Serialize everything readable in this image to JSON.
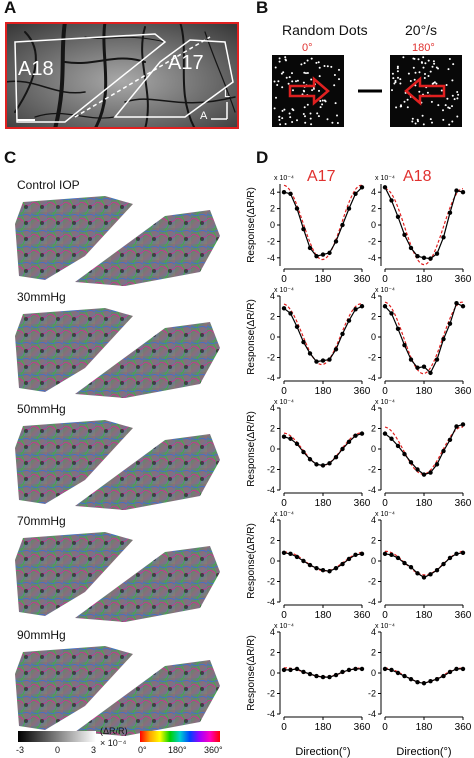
{
  "panels": {
    "A": "A",
    "B": "B",
    "C": "C",
    "D": "D"
  },
  "panel_a": {
    "left_area": "A18",
    "right_area": "A17",
    "axis_l": "L",
    "axis_a": "A"
  },
  "panel_b": {
    "title": "Random Dots",
    "speed": "20°/s",
    "left_angle": "0°",
    "right_angle": "180°"
  },
  "panel_c": {
    "conditions": [
      "Control IOP",
      "30mmHg",
      "50mmHg",
      "70mmHg",
      "90mmHg"
    ],
    "gray_bar": {
      "ticks": [
        "-3",
        "0",
        "3"
      ],
      "unit": "(ΔR/R)",
      "scale": "× 10⁻⁴"
    },
    "color_bar": {
      "ticks": [
        "0°",
        "180°",
        "360°"
      ]
    }
  },
  "panel_d": {
    "columns": [
      "A17",
      "A18"
    ],
    "ylabel": "Response(ΔR/R)",
    "xlabel": "Direction(°)",
    "yscale": "x 10⁻⁴",
    "col_title_color": "#e0312f"
  },
  "chart_data": [
    {
      "type": "line",
      "panel": "D",
      "column": "A17",
      "condition": "Control IOP",
      "x": [
        0,
        30,
        60,
        90,
        120,
        150,
        180,
        210,
        240,
        270,
        300,
        330,
        360
      ],
      "ylim": [
        -5,
        5
      ],
      "yticks": [
        -4,
        -2,
        0,
        2,
        4
      ],
      "xticks": [
        0,
        180,
        360
      ],
      "series": [
        {
          "values": [
            4.0,
            3.8,
            2.0,
            -0.5,
            -2.8,
            -3.8,
            -3.6,
            -3.4,
            -2.0,
            0.0,
            2.0,
            3.8,
            4.6
          ]
        }
      ]
    },
    {
      "type": "line",
      "panel": "D",
      "column": "A18",
      "condition": "Control IOP",
      "x": [
        0,
        30,
        60,
        90,
        120,
        150,
        180,
        210,
        240,
        270,
        300,
        330,
        360
      ],
      "ylim": [
        -5,
        5
      ],
      "yticks": [
        -4,
        -2,
        0,
        2,
        4
      ],
      "xticks": [
        0,
        180,
        360
      ],
      "series": [
        {
          "values": [
            4.6,
            3.0,
            1.0,
            -1.2,
            -2.8,
            -3.8,
            -4.0,
            -4.1,
            -3.5,
            -1.5,
            1.5,
            4.2,
            4.0
          ]
        }
      ]
    },
    {
      "type": "line",
      "panel": "D",
      "column": "A17",
      "condition": "30mmHg",
      "x": [
        0,
        30,
        60,
        90,
        120,
        150,
        180,
        210,
        240,
        270,
        300,
        330,
        360
      ],
      "ylim": [
        -4,
        4
      ],
      "yticks": [
        -4,
        -2,
        0,
        2,
        4
      ],
      "xticks": [
        0,
        180,
        360
      ],
      "series": [
        {
          "values": [
            2.8,
            2.3,
            1.0,
            -0.5,
            -1.6,
            -2.4,
            -2.3,
            -2.2,
            -1.2,
            0.3,
            1.6,
            2.7,
            3.0
          ]
        }
      ]
    },
    {
      "type": "line",
      "panel": "D",
      "column": "A18",
      "condition": "30mmHg",
      "x": [
        0,
        30,
        60,
        90,
        120,
        150,
        180,
        210,
        240,
        270,
        300,
        330,
        360
      ],
      "ylim": [
        -4,
        4
      ],
      "yticks": [
        -4,
        -2,
        0,
        2,
        4
      ],
      "xticks": [
        0,
        180,
        360
      ],
      "series": [
        {
          "values": [
            3.0,
            2.3,
            0.8,
            -0.8,
            -2.2,
            -3.0,
            -2.9,
            -3.5,
            -2.2,
            -0.2,
            1.3,
            3.3,
            3.0
          ]
        }
      ]
    },
    {
      "type": "line",
      "panel": "D",
      "column": "A17",
      "condition": "50mmHg",
      "x": [
        0,
        30,
        60,
        90,
        120,
        150,
        180,
        210,
        240,
        270,
        300,
        330,
        360
      ],
      "ylim": [
        -4,
        4
      ],
      "yticks": [
        -4,
        -2,
        0,
        2,
        4
      ],
      "xticks": [
        0,
        180,
        360
      ],
      "series": [
        {
          "values": [
            1.2,
            1.0,
            0.5,
            -0.3,
            -1.0,
            -1.5,
            -1.6,
            -1.4,
            -0.8,
            0.0,
            0.7,
            1.3,
            1.5
          ]
        }
      ]
    },
    {
      "type": "line",
      "panel": "D",
      "column": "A18",
      "condition": "50mmHg",
      "x": [
        0,
        30,
        60,
        90,
        120,
        150,
        180,
        210,
        240,
        270,
        300,
        330,
        360
      ],
      "ylim": [
        -4,
        4
      ],
      "yticks": [
        -4,
        -2,
        0,
        2,
        4
      ],
      "xticks": [
        0,
        180,
        360
      ],
      "series": [
        {
          "values": [
            1.5,
            1.0,
            0.3,
            -0.5,
            -1.3,
            -2.0,
            -2.5,
            -2.3,
            -1.5,
            -0.2,
            0.9,
            2.2,
            2.4
          ]
        }
      ]
    },
    {
      "type": "line",
      "panel": "D",
      "column": "A17",
      "condition": "70mmHg",
      "x": [
        0,
        30,
        60,
        90,
        120,
        150,
        180,
        210,
        240,
        270,
        300,
        330,
        360
      ],
      "ylim": [
        -4,
        4
      ],
      "yticks": [
        -4,
        -2,
        0,
        2,
        4
      ],
      "xticks": [
        0,
        180,
        360
      ],
      "series": [
        {
          "values": [
            0.8,
            0.7,
            0.4,
            0.0,
            -0.4,
            -0.7,
            -0.9,
            -1.0,
            -0.7,
            -0.3,
            0.2,
            0.6,
            0.7
          ]
        }
      ]
    },
    {
      "type": "line",
      "panel": "D",
      "column": "A18",
      "condition": "70mmHg",
      "x": [
        0,
        30,
        60,
        90,
        120,
        150,
        180,
        210,
        240,
        270,
        300,
        330,
        360
      ],
      "ylim": [
        -4,
        4
      ],
      "yticks": [
        -4,
        -2,
        0,
        2,
        4
      ],
      "xticks": [
        0,
        180,
        360
      ],
      "series": [
        {
          "values": [
            0.7,
            0.6,
            0.3,
            -0.2,
            -0.6,
            -1.2,
            -1.6,
            -1.3,
            -0.9,
            -0.3,
            0.3,
            0.7,
            0.8
          ]
        }
      ]
    },
    {
      "type": "line",
      "panel": "D",
      "column": "A17",
      "condition": "90mmHg",
      "x": [
        0,
        30,
        60,
        90,
        120,
        150,
        180,
        210,
        240,
        270,
        300,
        330,
        360
      ],
      "ylim": [
        -4,
        4
      ],
      "yticks": [
        -4,
        -2,
        0,
        2,
        4
      ],
      "xticks": [
        0,
        180,
        360
      ],
      "series": [
        {
          "values": [
            0.3,
            0.3,
            0.4,
            0.1,
            -0.1,
            -0.3,
            -0.4,
            -0.4,
            -0.2,
            0.1,
            0.3,
            0.4,
            0.4
          ]
        }
      ]
    },
    {
      "type": "line",
      "panel": "D",
      "column": "A18",
      "condition": "90mmHg",
      "x": [
        0,
        30,
        60,
        90,
        120,
        150,
        180,
        210,
        240,
        270,
        300,
        330,
        360
      ],
      "ylim": [
        -4,
        4
      ],
      "yticks": [
        -4,
        -2,
        0,
        2,
        4
      ],
      "xticks": [
        0,
        180,
        360
      ],
      "series": [
        {
          "values": [
            0.4,
            0.3,
            0.0,
            -0.3,
            -0.6,
            -0.9,
            -1.0,
            -0.8,
            -0.6,
            -0.3,
            0.1,
            0.4,
            0.4
          ]
        }
      ]
    }
  ]
}
